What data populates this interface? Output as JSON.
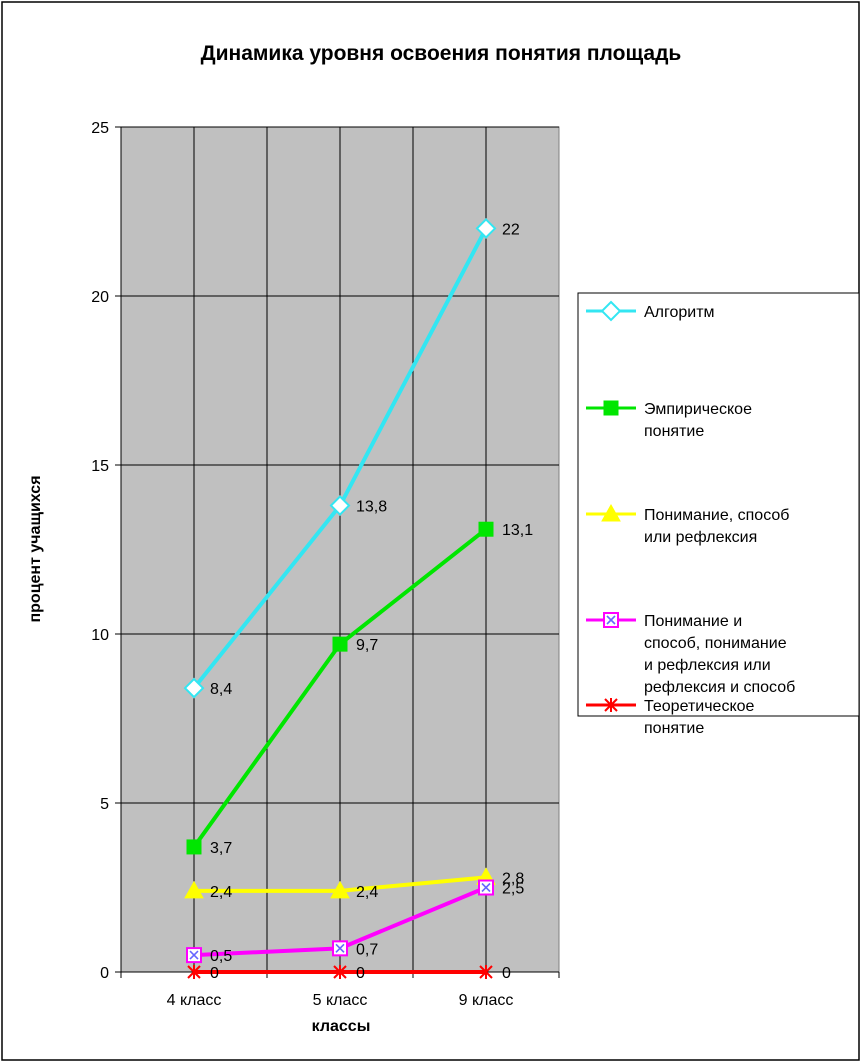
{
  "chart_data": {
    "type": "line",
    "title": "Динамика уровня освоения понятия площадь",
    "xlabel": "классы",
    "ylabel": "процент учащихся",
    "categories": [
      "4 класс",
      "5 класс",
      "9 класс"
    ],
    "ylim": [
      0,
      25
    ],
    "yticks": [
      0,
      5,
      10,
      15,
      20,
      25
    ],
    "grid": true,
    "legend_position": "right",
    "series": [
      {
        "name": "Алгоритм",
        "values": [
          8.4,
          13.8,
          22
        ],
        "labels": [
          "8,4",
          "13,8",
          "22"
        ],
        "color": "#33E6F2",
        "marker": "diamond"
      },
      {
        "name": "Эмпирическое понятие",
        "legend_lines": [
          "Эмпирическое",
          "понятие"
        ],
        "values": [
          3.7,
          9.7,
          13.1
        ],
        "labels": [
          "3,7",
          "9,7",
          "13,1"
        ],
        "color": "#00E600",
        "marker": "square"
      },
      {
        "name": "Понимание, способ или рефлексия",
        "legend_lines": [
          "Понимание, способ",
          "или рефлексия"
        ],
        "values": [
          2.4,
          2.4,
          2.8
        ],
        "labels": [
          "2,4",
          "2,4",
          "2,8"
        ],
        "color": "#FFFF00",
        "marker": "triangle"
      },
      {
        "name": "Понимание и способ, понимание и рефлексия или рефлексия и способ",
        "legend_lines": [
          "Понимание и",
          "способ, понимание",
          "и рефлексия или",
          "рефлексия и способ"
        ],
        "values": [
          0.5,
          0.7,
          2.5
        ],
        "labels": [
          "0,5",
          "0,7",
          "2,5"
        ],
        "color": "#FF00FF",
        "marker": "square-x"
      },
      {
        "name": "Теоретическое понятие",
        "legend_lines": [
          "Теоретическое",
          "понятие"
        ],
        "values": [
          0,
          0,
          0
        ],
        "labels": [
          "0",
          "0",
          "0"
        ],
        "color": "#FF0000",
        "marker": "star"
      }
    ]
  }
}
